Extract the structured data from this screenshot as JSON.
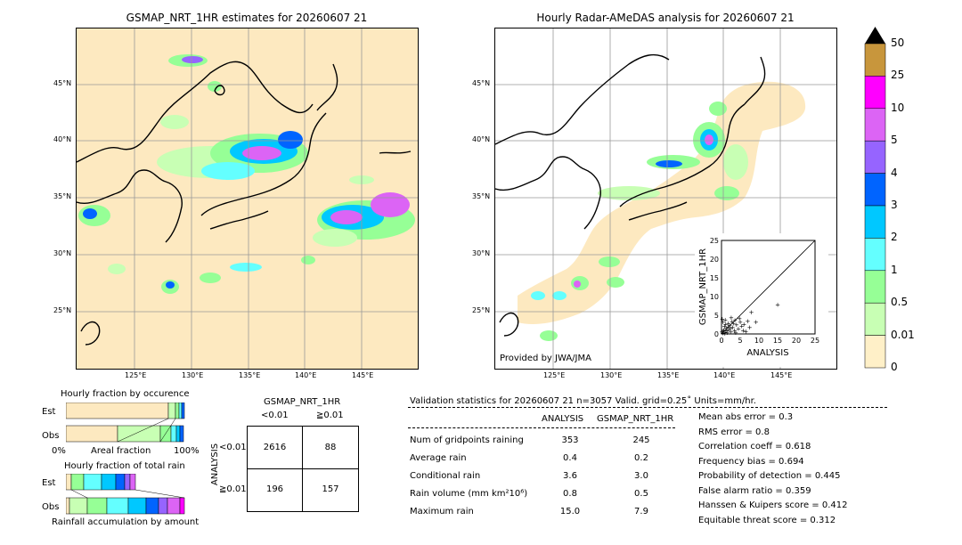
{
  "left_map": {
    "title": "GSMAP_NRT_1HR estimates for 20260607 21",
    "lat_labels": [
      "45°N",
      "40°N",
      "35°N",
      "30°N",
      "25°N"
    ],
    "lon_labels": [
      "125°E",
      "130°E",
      "135°E",
      "140°E",
      "145°E"
    ]
  },
  "right_map": {
    "title": "Hourly Radar-AMeDAS analysis for 20260607 21",
    "lat_labels": [
      "45°N",
      "40°N",
      "35°N",
      "30°N",
      "25°N"
    ],
    "lon_labels": [
      "125°E",
      "130°E",
      "135°E",
      "140°E",
      "145°E"
    ],
    "credit": "Provided by JWA/JMA"
  },
  "colorbar": {
    "labels": [
      "50",
      "25",
      "10",
      "5",
      "4",
      "3",
      "2",
      "1",
      "0.5",
      "0.01",
      "0"
    ],
    "colors": [
      "#c8963c",
      "#ff00ff",
      "#dc64f5",
      "#9664ff",
      "#0064ff",
      "#00c8ff",
      "#64ffff",
      "#96ff96",
      "#c8ffb4",
      "#fff0c8"
    ]
  },
  "scatter": {
    "xlabel": "ANALYSIS",
    "ylabel": "GSMAP_NRT_1HR",
    "ticks": [
      "0",
      "5",
      "10",
      "15",
      "20",
      "25"
    ]
  },
  "fraction_occurrence": {
    "title": "Hourly fraction by occurence",
    "row_est": "Est",
    "row_obs": "Obs",
    "axis_left": "0%",
    "axis_mid": "Areal fraction",
    "axis_right": "100%"
  },
  "fraction_total": {
    "title": "Hourly fraction of total rain",
    "row_est": "Est",
    "row_obs": "Obs",
    "footer": "Rainfall accumulation by amount"
  },
  "contingency": {
    "title": "GSMAP_NRT_1HR",
    "col_lt": "<0.01",
    "col_ge": "≧0.01",
    "row_axis": "ANALYSIS",
    "row_lt": "<0.01",
    "row_ge": "≧0.01",
    "cells": [
      "2616",
      "88",
      "196",
      "157"
    ]
  },
  "validation": {
    "header": "Validation statistics for 20260607 21  n=3057 Valid. grid=0.25˚ Units=mm/hr.",
    "col_analysis": "ANALYSIS",
    "col_gsmap": "GSMAP_NRT_1HR",
    "rows": [
      {
        "label": "Num of gridpoints raining",
        "analysis": "353",
        "gsmap": "245"
      },
      {
        "label": "Average rain",
        "analysis": "0.4",
        "gsmap": "0.2"
      },
      {
        "label": "Conditional rain",
        "analysis": "3.6",
        "gsmap": "3.0"
      },
      {
        "label": "Rain volume (mm km²10⁶)",
        "analysis": "0.8",
        "gsmap": "0.5"
      },
      {
        "label": "Maximum rain",
        "analysis": "15.0",
        "gsmap": "7.9"
      }
    ],
    "scores": [
      "Mean abs error =    0.3",
      "RMS error =    0.8",
      "Correlation coeff =  0.618",
      "Frequency bias =  0.694",
      "Probability of detection =  0.445",
      "False alarm ratio =  0.359",
      "Hanssen & Kuipers score =  0.412",
      "Equitable threat score =  0.312"
    ]
  },
  "chart_data": {
    "type": "scatter",
    "xlabel": "ANALYSIS",
    "ylabel": "GSMAP_NRT_1HR",
    "xlim": [
      0,
      25
    ],
    "ylim": [
      0,
      25
    ],
    "points": [
      [
        0.3,
        0.2
      ],
      [
        0.5,
        0.8
      ],
      [
        1,
        0.5
      ],
      [
        1.2,
        1.5
      ],
      [
        0.8,
        2.2
      ],
      [
        1.5,
        0.3
      ],
      [
        2,
        1.2
      ],
      [
        2.5,
        0.6
      ],
      [
        1.8,
        2.8
      ],
      [
        0.4,
        3.2
      ],
      [
        3,
        1.8
      ],
      [
        2.2,
        2.4
      ],
      [
        3.5,
        0.9
      ],
      [
        1,
        3.8
      ],
      [
        4,
        2.5
      ],
      [
        2.8,
        3.3
      ],
      [
        0.6,
        1.1
      ],
      [
        1.4,
        0.9
      ],
      [
        3.2,
        2.9
      ],
      [
        4.5,
        1.4
      ],
      [
        5,
        3.2
      ],
      [
        0.2,
        4.1
      ],
      [
        2.6,
        4.4
      ],
      [
        5.8,
        1
      ],
      [
        6,
        2.6
      ],
      [
        7,
        3.5
      ],
      [
        3.8,
        0.4
      ],
      [
        1.1,
        2.6
      ],
      [
        0.9,
        0.1
      ],
      [
        4.8,
        4.2
      ],
      [
        6.5,
        0.7
      ],
      [
        8,
        5.8
      ],
      [
        7.5,
        1.8
      ],
      [
        9.2,
        3.2
      ],
      [
        2.4,
        1.6
      ],
      [
        1.7,
        1.9
      ],
      [
        3.6,
        3.7
      ],
      [
        0.1,
        0.6
      ],
      [
        5.4,
        2.2
      ],
      [
        15,
        7.9
      ]
    ]
  }
}
